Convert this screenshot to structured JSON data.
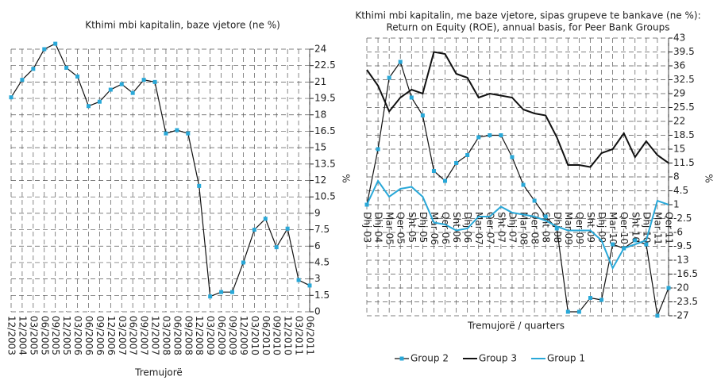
{
  "chart_data": [
    {
      "type": "line",
      "title": "Kthimi mbi kapitalin, baze vjetore (ne %)",
      "y_label": "%",
      "x_label": "Tremujorë",
      "categories": [
        "12/2003",
        "12/2004",
        "03/2005",
        "06/2005",
        "09/2005",
        "12/2005",
        "03/2006",
        "06/2006",
        "09/2006",
        "12/2006",
        "03/2007",
        "06/2007",
        "09/2007",
        "12/2007",
        "03/2008",
        "06/2008",
        "09/2008",
        "12/2008",
        "03/2009",
        "06/2009",
        "09/2009",
        "12/2009",
        "03/2010",
        "06/2010",
        "09/2010",
        "12/2010",
        "03/2011",
        "06/2011"
      ],
      "values": [
        19.6,
        21.2,
        22.2,
        24.0,
        24.5,
        22.3,
        21.5,
        18.8,
        19.2,
        20.3,
        20.8,
        20.0,
        21.2,
        21.0,
        16.3,
        16.6,
        16.3,
        11.5,
        1.4,
        1.8,
        1.8,
        4.5,
        7.5,
        8.5,
        5.9,
        7.6,
        2.9,
        2.4
      ],
      "color": "#111111",
      "marker_color": "#29a8d8",
      "ylim": [
        0,
        24
      ],
      "yticks": [
        0,
        1.5,
        3,
        4.5,
        6,
        7.5,
        9,
        10.5,
        12,
        13.5,
        15,
        16.5,
        18,
        19.5,
        21,
        22.5,
        24
      ],
      "grid": true
    },
    {
      "type": "line",
      "title": "Kthimi mbi kapitalin, me baze vjetore, sipas grupeve te bankave (ne %):",
      "subtitle": "Return on Equity (ROE), annual basis, for Peer Bank Groups",
      "y_label": "%",
      "x_label": "Tremujorë / quarters",
      "categories": [
        "Dhj 03",
        "Dhj 04",
        "Mar 05",
        "Qer 05",
        "Sht 05",
        "Dhj 05",
        "Mar 06",
        "Qer 06",
        "Sht 06",
        "Dhj 06",
        "Mar 07",
        "Qer 07",
        "Sht 07",
        "Dhj 07",
        "Mar 08",
        "Qer 08",
        "Sht 08",
        "Dhj 08",
        "Mar 09",
        "Qer 09",
        "Sht 09",
        "Dhj 09",
        "Mar 10",
        "Qer 10",
        "Sht 10",
        "Dhj 10",
        "Mar 11",
        "Qer 11"
      ],
      "series": [
        {
          "name": "Group 2",
          "color": "#111111",
          "marker_color": "#29a8d8",
          "values": [
            1,
            15,
            33,
            37,
            28,
            23.5,
            9.5,
            7,
            11.5,
            13.5,
            18,
            18.5,
            18.5,
            13,
            6,
            2,
            -2,
            -5,
            -26,
            -26,
            -22.5,
            -23,
            -9,
            -10,
            -8,
            -9,
            -27,
            -20
          ]
        },
        {
          "name": "Group 3",
          "color": "#111111",
          "values": [
            35,
            31,
            24.5,
            28,
            30,
            29,
            39.5,
            39,
            34,
            33,
            28,
            29,
            28.5,
            28,
            25,
            24,
            23.5,
            18,
            11,
            11,
            10.5,
            14,
            15,
            19,
            13,
            17,
            13.5,
            11.5
          ]
        },
        {
          "name": "Group 1",
          "color": "#29a8d8",
          "values": [
            1,
            7,
            3,
            5,
            5.5,
            3,
            -3.5,
            -4,
            -5.5,
            -5,
            -2,
            -2,
            0.5,
            -1,
            -1.5,
            -2,
            -3,
            -4.5,
            -5.5,
            -5.5,
            -5.5,
            -8,
            -15,
            -10,
            -9,
            -8,
            2,
            1
          ]
        }
      ],
      "ylim": [
        -27,
        43
      ],
      "yticks": [
        -27,
        -23.5,
        -20,
        -16.5,
        -13,
        -9.5,
        -6,
        -2.5,
        1,
        4.5,
        8,
        11.5,
        15,
        18.5,
        22,
        25.5,
        29,
        32.5,
        36,
        39.5,
        43
      ],
      "grid": true,
      "legend": "bottom"
    }
  ]
}
